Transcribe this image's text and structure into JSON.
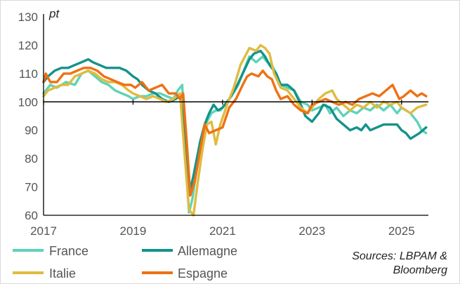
{
  "chart_data": {
    "type": "line",
    "unit_label": "pt",
    "ylim": [
      60,
      130
    ],
    "xlim": [
      2017.0,
      2025.6
    ],
    "y_ticks": [
      60,
      70,
      80,
      90,
      100,
      110,
      120,
      130
    ],
    "y_tick_labels": [
      "60",
      "70",
      "80",
      "90",
      "100",
      "110",
      "120",
      "130"
    ],
    "x_ticks": [
      2017,
      2019,
      2021,
      2023,
      2025
    ],
    "x_tick_labels": [
      "2017",
      "2019",
      "2021",
      "2023",
      "2025"
    ],
    "reference_line": 100,
    "source_lines": [
      "Sources: LBPAM &",
      "Bloomberg"
    ],
    "series": [
      {
        "name": "France",
        "color": "#5ED3B8",
        "points": [
          [
            2017.0,
            103
          ],
          [
            2017.15,
            106
          ],
          [
            2017.3,
            105
          ],
          [
            2017.5,
            107
          ],
          [
            2017.7,
            106
          ],
          [
            2017.85,
            110
          ],
          [
            2018.0,
            111
          ],
          [
            2018.15,
            109
          ],
          [
            2018.3,
            107
          ],
          [
            2018.45,
            106
          ],
          [
            2018.6,
            104
          ],
          [
            2018.75,
            103
          ],
          [
            2018.9,
            102
          ],
          [
            2019.0,
            101
          ],
          [
            2019.15,
            102
          ],
          [
            2019.3,
            102
          ],
          [
            2019.45,
            103
          ],
          [
            2019.6,
            103
          ],
          [
            2019.75,
            102
          ],
          [
            2019.9,
            101
          ],
          [
            2020.0,
            104
          ],
          [
            2020.1,
            106
          ],
          [
            2020.17,
            80
          ],
          [
            2020.25,
            61
          ],
          [
            2020.33,
            66
          ],
          [
            2020.45,
            80
          ],
          [
            2020.55,
            88
          ],
          [
            2020.65,
            93
          ],
          [
            2020.75,
            96
          ],
          [
            2020.85,
            97
          ],
          [
            2020.95,
            97
          ],
          [
            2021.1,
            100
          ],
          [
            2021.2,
            102
          ],
          [
            2021.35,
            106
          ],
          [
            2021.5,
            112
          ],
          [
            2021.6,
            116
          ],
          [
            2021.75,
            114
          ],
          [
            2021.9,
            116
          ],
          [
            2022.0,
            114
          ],
          [
            2022.1,
            113
          ],
          [
            2022.2,
            110
          ],
          [
            2022.3,
            106
          ],
          [
            2022.45,
            105
          ],
          [
            2022.6,
            104
          ],
          [
            2022.75,
            100
          ],
          [
            2022.9,
            99
          ],
          [
            2023.0,
            97
          ],
          [
            2023.15,
            98
          ],
          [
            2023.3,
            99
          ],
          [
            2023.4,
            96
          ],
          [
            2023.55,
            98
          ],
          [
            2023.7,
            95
          ],
          [
            2023.85,
            97
          ],
          [
            2024.0,
            96
          ],
          [
            2024.15,
            98
          ],
          [
            2024.3,
            97
          ],
          [
            2024.45,
            99
          ],
          [
            2024.6,
            97
          ],
          [
            2024.75,
            99
          ],
          [
            2024.9,
            96
          ],
          [
            2025.0,
            98
          ],
          [
            2025.1,
            97
          ],
          [
            2025.2,
            96
          ],
          [
            2025.35,
            93
          ],
          [
            2025.45,
            90
          ],
          [
            2025.55,
            89
          ]
        ]
      },
      {
        "name": "Allemagne",
        "color": "#13938A",
        "points": [
          [
            2017.0,
            107
          ],
          [
            2017.1,
            109
          ],
          [
            2017.25,
            111
          ],
          [
            2017.4,
            112
          ],
          [
            2017.55,
            112
          ],
          [
            2017.7,
            113
          ],
          [
            2017.85,
            114
          ],
          [
            2018.0,
            115
          ],
          [
            2018.1,
            114
          ],
          [
            2018.25,
            113
          ],
          [
            2018.4,
            112
          ],
          [
            2018.55,
            112
          ],
          [
            2018.7,
            112
          ],
          [
            2018.85,
            111
          ],
          [
            2019.0,
            109
          ],
          [
            2019.1,
            108
          ],
          [
            2019.2,
            106
          ],
          [
            2019.35,
            104
          ],
          [
            2019.5,
            103
          ],
          [
            2019.65,
            101
          ],
          [
            2019.8,
            100
          ],
          [
            2019.95,
            101
          ],
          [
            2020.05,
            102
          ],
          [
            2020.15,
            90
          ],
          [
            2020.25,
            67
          ],
          [
            2020.35,
            74
          ],
          [
            2020.5,
            86
          ],
          [
            2020.6,
            92
          ],
          [
            2020.7,
            96
          ],
          [
            2020.8,
            99
          ],
          [
            2020.9,
            97
          ],
          [
            2021.0,
            98
          ],
          [
            2021.15,
            101
          ],
          [
            2021.3,
            105
          ],
          [
            2021.45,
            110
          ],
          [
            2021.6,
            115
          ],
          [
            2021.7,
            117
          ],
          [
            2021.85,
            118
          ],
          [
            2021.95,
            116
          ],
          [
            2022.05,
            113
          ],
          [
            2022.2,
            110
          ],
          [
            2022.3,
            106
          ],
          [
            2022.45,
            106
          ],
          [
            2022.6,
            104
          ],
          [
            2022.75,
            99
          ],
          [
            2022.85,
            95
          ],
          [
            2023.0,
            93
          ],
          [
            2023.15,
            96
          ],
          [
            2023.25,
            99
          ],
          [
            2023.4,
            98
          ],
          [
            2023.55,
            94
          ],
          [
            2023.7,
            92
          ],
          [
            2023.85,
            90
          ],
          [
            2024.0,
            91
          ],
          [
            2024.1,
            90
          ],
          [
            2024.2,
            92
          ],
          [
            2024.3,
            90
          ],
          [
            2024.45,
            91
          ],
          [
            2024.6,
            92
          ],
          [
            2024.75,
            92
          ],
          [
            2024.9,
            92
          ],
          [
            2025.0,
            90
          ],
          [
            2025.1,
            89
          ],
          [
            2025.2,
            87
          ],
          [
            2025.3,
            88
          ],
          [
            2025.4,
            89
          ],
          [
            2025.55,
            91
          ]
        ]
      },
      {
        "name": "Italie",
        "color": "#E0BB3F",
        "points": [
          [
            2017.0,
            102
          ],
          [
            2017.1,
            104
          ],
          [
            2017.25,
            105
          ],
          [
            2017.4,
            106
          ],
          [
            2017.55,
            106
          ],
          [
            2017.7,
            109
          ],
          [
            2017.85,
            110
          ],
          [
            2018.0,
            111
          ],
          [
            2018.15,
            110
          ],
          [
            2018.3,
            108
          ],
          [
            2018.45,
            107
          ],
          [
            2018.6,
            107
          ],
          [
            2018.75,
            106
          ],
          [
            2018.9,
            104
          ],
          [
            2019.0,
            103
          ],
          [
            2019.15,
            102
          ],
          [
            2019.3,
            101
          ],
          [
            2019.45,
            102
          ],
          [
            2019.6,
            101
          ],
          [
            2019.75,
            100
          ],
          [
            2019.9,
            101
          ],
          [
            2020.05,
            103
          ],
          [
            2020.15,
            82
          ],
          [
            2020.25,
            62
          ],
          [
            2020.35,
            60
          ],
          [
            2020.45,
            72
          ],
          [
            2020.55,
            83
          ],
          [
            2020.65,
            92
          ],
          [
            2020.75,
            93
          ],
          [
            2020.85,
            85
          ],
          [
            2020.95,
            92
          ],
          [
            2021.1,
            99
          ],
          [
            2021.25,
            105
          ],
          [
            2021.4,
            113
          ],
          [
            2021.5,
            116
          ],
          [
            2021.6,
            119
          ],
          [
            2021.75,
            118
          ],
          [
            2021.85,
            120
          ],
          [
            2021.95,
            119
          ],
          [
            2022.05,
            117
          ],
          [
            2022.15,
            110
          ],
          [
            2022.3,
            105
          ],
          [
            2022.45,
            104
          ],
          [
            2022.6,
            101
          ],
          [
            2022.75,
            98
          ],
          [
            2022.9,
            96
          ],
          [
            2023.0,
            98
          ],
          [
            2023.15,
            101
          ],
          [
            2023.3,
            103
          ],
          [
            2023.45,
            104
          ],
          [
            2023.55,
            101
          ],
          [
            2023.7,
            99
          ],
          [
            2023.85,
            97
          ],
          [
            2024.0,
            99
          ],
          [
            2024.15,
            98
          ],
          [
            2024.3,
            100
          ],
          [
            2024.45,
            98
          ],
          [
            2024.6,
            100
          ],
          [
            2024.75,
            99
          ],
          [
            2024.9,
            100
          ],
          [
            2025.0,
            98
          ],
          [
            2025.1,
            97
          ],
          [
            2025.2,
            96
          ],
          [
            2025.35,
            98
          ],
          [
            2025.55,
            99
          ]
        ]
      },
      {
        "name": "Espagne",
        "color": "#EE7114",
        "points": [
          [
            2017.0,
            107
          ],
          [
            2017.05,
            110
          ],
          [
            2017.15,
            107
          ],
          [
            2017.3,
            107
          ],
          [
            2017.45,
            110
          ],
          [
            2017.6,
            110
          ],
          [
            2017.75,
            111
          ],
          [
            2017.9,
            112
          ],
          [
            2018.05,
            112
          ],
          [
            2018.2,
            111
          ],
          [
            2018.35,
            109
          ],
          [
            2018.5,
            108
          ],
          [
            2018.65,
            107
          ],
          [
            2018.8,
            106
          ],
          [
            2018.95,
            106
          ],
          [
            2019.05,
            105
          ],
          [
            2019.2,
            107
          ],
          [
            2019.35,
            104
          ],
          [
            2019.5,
            105
          ],
          [
            2019.65,
            106
          ],
          [
            2019.8,
            103
          ],
          [
            2019.95,
            103
          ],
          [
            2020.05,
            101
          ],
          [
            2020.12,
            103
          ],
          [
            2020.2,
            86
          ],
          [
            2020.28,
            67
          ],
          [
            2020.38,
            72
          ],
          [
            2020.5,
            83
          ],
          [
            2020.6,
            92
          ],
          [
            2020.7,
            89
          ],
          [
            2020.85,
            90
          ],
          [
            2021.0,
            91
          ],
          [
            2021.15,
            98
          ],
          [
            2021.3,
            101
          ],
          [
            2021.45,
            106
          ],
          [
            2021.55,
            109
          ],
          [
            2021.65,
            110
          ],
          [
            2021.8,
            109
          ],
          [
            2021.9,
            111
          ],
          [
            2022.0,
            109
          ],
          [
            2022.1,
            108
          ],
          [
            2022.2,
            104
          ],
          [
            2022.3,
            101
          ],
          [
            2022.45,
            102
          ],
          [
            2022.6,
            99
          ],
          [
            2022.75,
            97
          ],
          [
            2022.9,
            96
          ],
          [
            2023.0,
            99
          ],
          [
            2023.15,
            100
          ],
          [
            2023.3,
            101
          ],
          [
            2023.45,
            100
          ],
          [
            2023.6,
            99
          ],
          [
            2023.75,
            100
          ],
          [
            2023.9,
            99
          ],
          [
            2024.05,
            101
          ],
          [
            2024.2,
            102
          ],
          [
            2024.35,
            103
          ],
          [
            2024.5,
            102
          ],
          [
            2024.65,
            104
          ],
          [
            2024.8,
            106
          ],
          [
            2024.95,
            101
          ],
          [
            2025.05,
            102
          ],
          [
            2025.2,
            104
          ],
          [
            2025.35,
            102
          ],
          [
            2025.45,
            103
          ],
          [
            2025.55,
            102
          ]
        ]
      }
    ]
  }
}
